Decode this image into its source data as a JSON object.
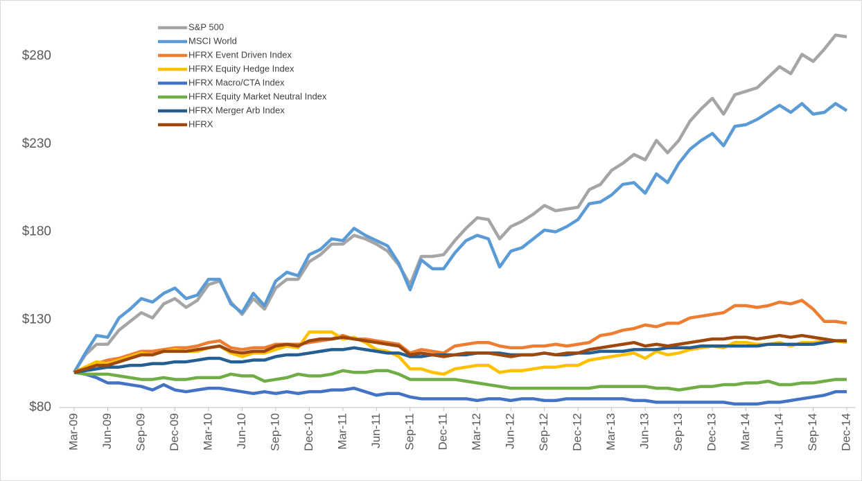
{
  "chart_data": {
    "type": "line",
    "categories": [
      "Mar-09",
      null,
      null,
      "Jun-09",
      null,
      null,
      "Sep-09",
      null,
      null,
      "Dec-09",
      null,
      null,
      "Mar-10",
      null,
      null,
      "Jun-10",
      null,
      null,
      "Sep-10",
      null,
      null,
      "Dec-10",
      null,
      null,
      "Mar-11",
      null,
      null,
      "Jun-11",
      null,
      null,
      "Sep-11",
      null,
      null,
      "Dec-11",
      null,
      null,
      "Mar-12",
      null,
      null,
      "Jun-12",
      null,
      null,
      "Sep-12",
      null,
      null,
      "Dec-12",
      null,
      null,
      "Mar-13",
      null,
      null,
      "Jun-13",
      null,
      null,
      "Sep-13",
      null,
      null,
      "Dec-13",
      null,
      null,
      "Mar-14",
      null,
      null,
      "Jun-14",
      null,
      null,
      "Sep-14",
      null,
      null,
      "Dec-14"
    ],
    "ylim": [
      80,
      308
    ],
    "yticks": [
      {
        "value": 80,
        "label": "$80"
      },
      {
        "value": 130,
        "label": "$130"
      },
      {
        "value": 180,
        "label": "$180"
      },
      {
        "value": 230,
        "label": "$230"
      },
      {
        "value": 280,
        "label": "$280"
      }
    ],
    "legend_position": "upper left",
    "series": [
      {
        "name": "S&P 500",
        "color": "#a5a5a5",
        "values": [
          100,
          110,
          116,
          116,
          124,
          129,
          134,
          131,
          139,
          142,
          137,
          141,
          150,
          152,
          140,
          133,
          142,
          136,
          148,
          153,
          153,
          163,
          167,
          173,
          173,
          178,
          176,
          173,
          169,
          161,
          150,
          166,
          166,
          167,
          175,
          182,
          188,
          187,
          176,
          183,
          186,
          190,
          195,
          192,
          193,
          194,
          204,
          207,
          215,
          219,
          224,
          221,
          232,
          225,
          232,
          243,
          250,
          256,
          247,
          258,
          260,
          262,
          268,
          274,
          270,
          281,
          277,
          284,
          292,
          291
        ]
      },
      {
        "name": "MSCI World",
        "color": "#5b9bd5",
        "values": [
          100,
          111,
          121,
          120,
          131,
          136,
          142,
          140,
          145,
          148,
          142,
          144,
          153,
          153,
          139,
          134,
          145,
          138,
          152,
          157,
          155,
          167,
          170,
          176,
          175,
          182,
          178,
          175,
          172,
          162,
          147,
          164,
          159,
          159,
          168,
          175,
          178,
          176,
          160,
          169,
          171,
          176,
          181,
          180,
          183,
          187,
          196,
          197,
          201,
          207,
          208,
          202,
          213,
          208,
          219,
          227,
          232,
          236,
          229,
          240,
          241,
          244,
          248,
          252,
          248,
          253,
          247,
          248,
          253,
          249
        ]
      },
      {
        "name": "HFRX Event Driven Index",
        "color": "#ed7d31",
        "values": [
          100,
          103,
          105,
          107,
          108,
          110,
          112,
          112,
          113,
          114,
          114,
          115,
          117,
          118,
          114,
          113,
          114,
          114,
          116,
          116,
          116,
          117,
          118,
          119,
          121,
          119,
          119,
          118,
          117,
          116,
          111,
          113,
          112,
          111,
          115,
          116,
          117,
          117,
          115,
          114,
          114,
          115,
          115,
          116,
          115,
          116,
          117,
          121,
          122,
          124,
          125,
          127,
          126,
          128,
          128,
          131,
          132,
          133,
          134,
          138,
          138,
          137,
          138,
          140,
          139,
          141,
          136,
          129,
          129,
          128
        ]
      },
      {
        "name": "HFRX Equity Hedge Index",
        "color": "#ffc000",
        "values": [
          100,
          103,
          106,
          105,
          107,
          109,
          111,
          110,
          112,
          113,
          112,
          112,
          114,
          115,
          111,
          109,
          111,
          111,
          113,
          115,
          114,
          123,
          123,
          123,
          119,
          120,
          117,
          113,
          112,
          109,
          102,
          102,
          100,
          99,
          102,
          103,
          104,
          104,
          100,
          101,
          101,
          102,
          103,
          103,
          104,
          104,
          107,
          108,
          109,
          110,
          111,
          108,
          112,
          110,
          111,
          113,
          114,
          115,
          114,
          117,
          117,
          116,
          116,
          117,
          115,
          117,
          117,
          118,
          118,
          117
        ]
      },
      {
        "name": "HFRX Macro/CTA Index",
        "color": "#4472c4",
        "values": [
          100,
          99,
          97,
          94,
          94,
          93,
          92,
          90,
          93,
          90,
          89,
          90,
          91,
          91,
          90,
          89,
          88,
          89,
          88,
          89,
          88,
          89,
          89,
          90,
          90,
          91,
          89,
          87,
          88,
          88,
          86,
          85,
          85,
          85,
          85,
          85,
          84,
          85,
          85,
          84,
          85,
          85,
          84,
          84,
          85,
          85,
          85,
          85,
          85,
          85,
          84,
          84,
          83,
          83,
          83,
          83,
          83,
          83,
          83,
          82,
          82,
          82,
          83,
          83,
          84,
          85,
          86,
          87,
          89,
          89
        ]
      },
      {
        "name": "HFRX Equity Market Neutral Index",
        "color": "#70ad47",
        "values": [
          100,
          99,
          99,
          99,
          98,
          97,
          96,
          96,
          97,
          96,
          96,
          97,
          97,
          97,
          99,
          98,
          98,
          95,
          96,
          97,
          99,
          98,
          98,
          99,
          101,
          100,
          100,
          101,
          101,
          99,
          96,
          96,
          96,
          96,
          96,
          95,
          94,
          93,
          92,
          91,
          91,
          91,
          91,
          91,
          91,
          91,
          91,
          92,
          92,
          92,
          92,
          92,
          91,
          91,
          90,
          91,
          92,
          92,
          93,
          93,
          94,
          94,
          95,
          93,
          93,
          94,
          94,
          95,
          96,
          96
        ]
      },
      {
        "name": "HFRX Merger Arb Index",
        "color": "#255e91",
        "values": [
          100,
          101,
          102,
          103,
          103,
          104,
          104,
          105,
          105,
          106,
          106,
          107,
          108,
          108,
          106,
          106,
          107,
          107,
          109,
          110,
          110,
          111,
          112,
          113,
          113,
          114,
          113,
          112,
          111,
          111,
          109,
          109,
          110,
          110,
          110,
          110,
          111,
          111,
          111,
          110,
          110,
          110,
          111,
          110,
          110,
          111,
          111,
          112,
          112,
          112,
          113,
          113,
          113,
          114,
          114,
          114,
          115,
          115,
          115,
          115,
          115,
          115,
          116,
          116,
          116,
          116,
          116,
          117,
          118,
          118
        ]
      },
      {
        "name": "HFRX",
        "color": "#9e480e",
        "values": [
          100,
          102,
          104,
          104,
          106,
          108,
          110,
          110,
          112,
          112,
          112,
          113,
          114,
          115,
          112,
          111,
          112,
          112,
          115,
          116,
          115,
          118,
          119,
          119,
          120,
          119,
          118,
          117,
          116,
          115,
          110,
          111,
          110,
          109,
          110,
          111,
          111,
          111,
          110,
          109,
          110,
          110,
          111,
          110,
          111,
          111,
          113,
          114,
          115,
          116,
          117,
          115,
          116,
          115,
          116,
          117,
          118,
          119,
          119,
          120,
          120,
          119,
          120,
          121,
          120,
          121,
          120,
          119,
          118,
          118
        ]
      }
    ]
  }
}
